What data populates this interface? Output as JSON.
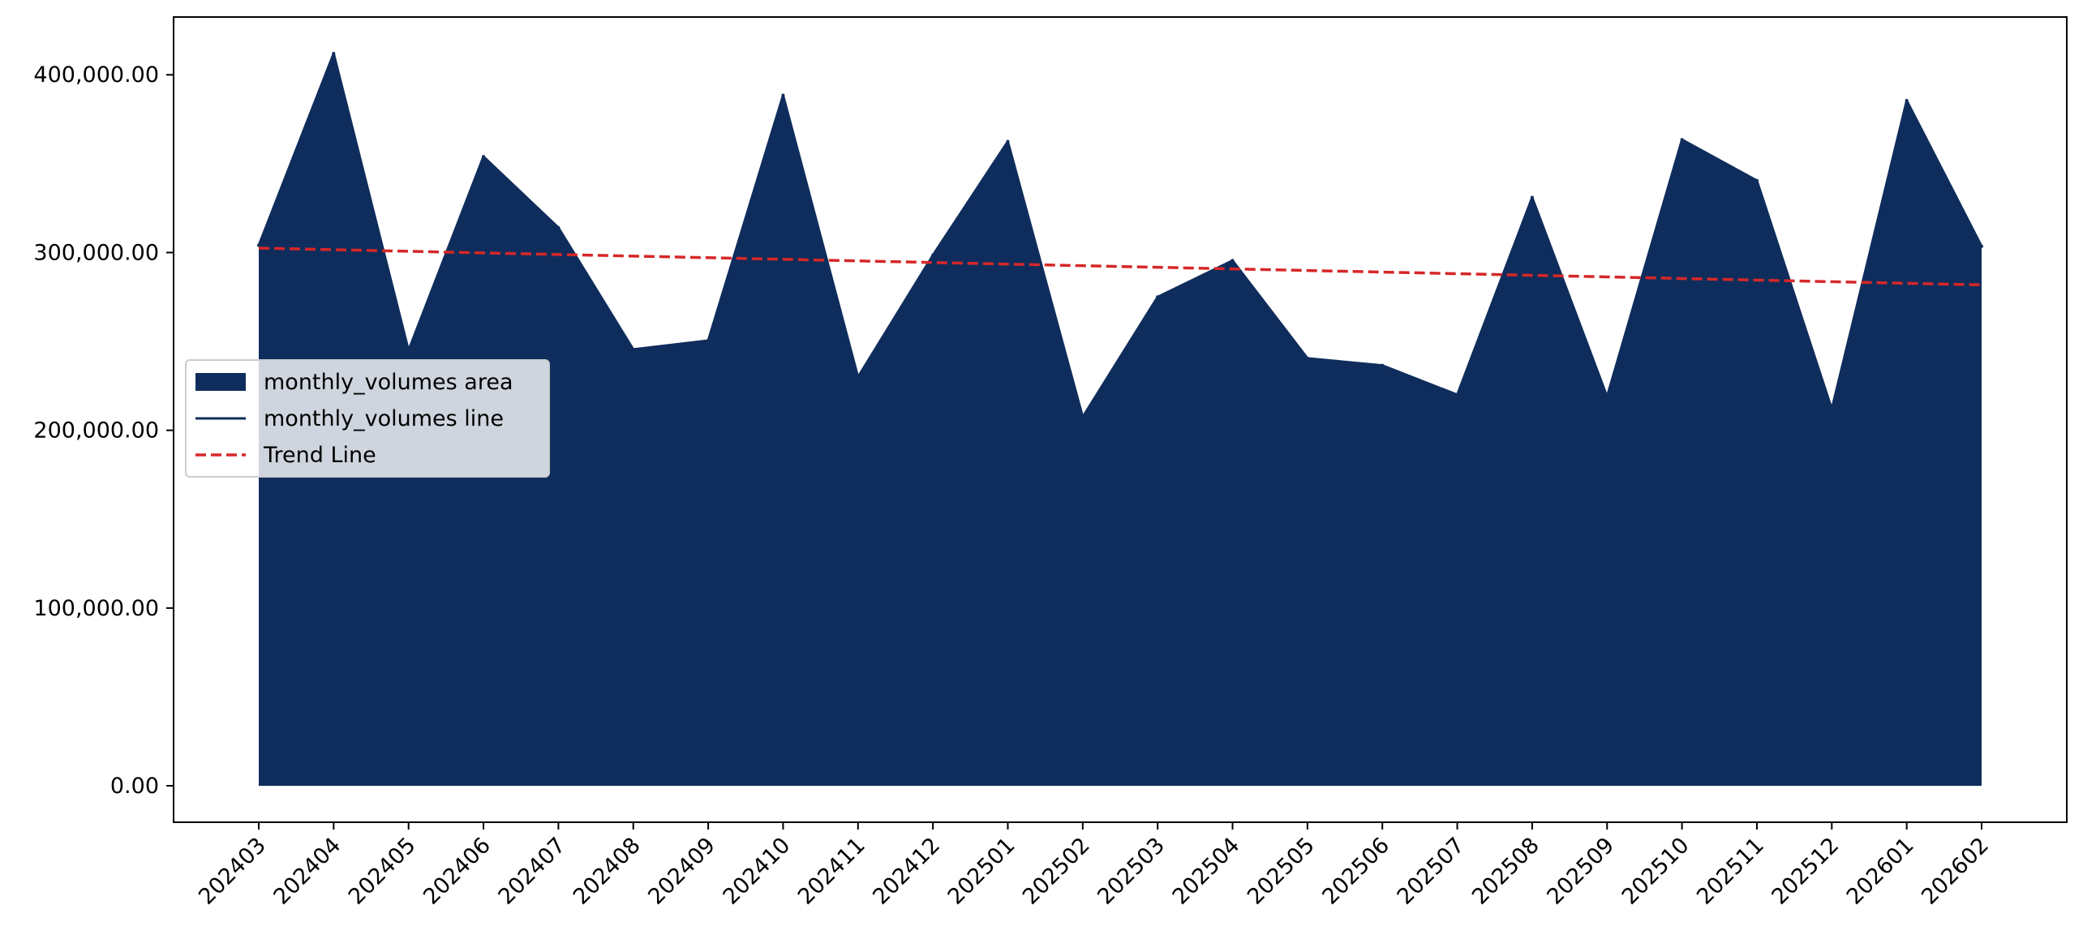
{
  "chart_data": {
    "type": "area",
    "categories": [
      "202403",
      "202404",
      "202405",
      "202406",
      "202407",
      "202408",
      "202409",
      "202410",
      "202411",
      "202412",
      "202501",
      "202502",
      "202503",
      "202504",
      "202505",
      "202506",
      "202507",
      "202508",
      "202509",
      "202510",
      "202511",
      "202512",
      "202601",
      "202602"
    ],
    "series": [
      {
        "name": "monthly_volumes area",
        "kind": "area",
        "color": "#0f2d5c",
        "values": [
          304000,
          412000,
          245000,
          354000,
          314000,
          245500,
          250500,
          388500,
          230000,
          298500,
          362500,
          207500,
          275000,
          295500,
          240500,
          236500,
          220000,
          331000,
          219000,
          363500,
          340500,
          212000,
          385500,
          303500
        ]
      },
      {
        "name": "monthly_volumes line",
        "kind": "line",
        "color": "#0f2d5c",
        "values": [
          304000,
          412000,
          245000,
          354000,
          314000,
          245500,
          250500,
          388500,
          230000,
          298500,
          362500,
          207500,
          275000,
          295500,
          240500,
          236500,
          220000,
          331000,
          219000,
          363500,
          340500,
          212000,
          385500,
          303500
        ]
      },
      {
        "name": "Trend Line",
        "kind": "trend",
        "color": "#d62728",
        "values": [
          302500,
          301600,
          300700,
          299800,
          298900,
          298000,
          297100,
          296200,
          295300,
          294400,
          293500,
          292600,
          291700,
          290800,
          289900,
          289000,
          288100,
          287200,
          286300,
          285400,
          284500,
          283600,
          282700,
          281800
        ]
      }
    ],
    "y_ticks": [
      "0.00",
      "100,000.00",
      "200,000.00",
      "300,000.00",
      "400,000.00"
    ],
    "y_tick_values": [
      0,
      100000,
      200000,
      300000,
      400000
    ],
    "ylim": [
      -20500,
      432500
    ],
    "title": "",
    "xlabel": "",
    "ylabel": "",
    "legend_position": "center-left",
    "grid": false
  }
}
